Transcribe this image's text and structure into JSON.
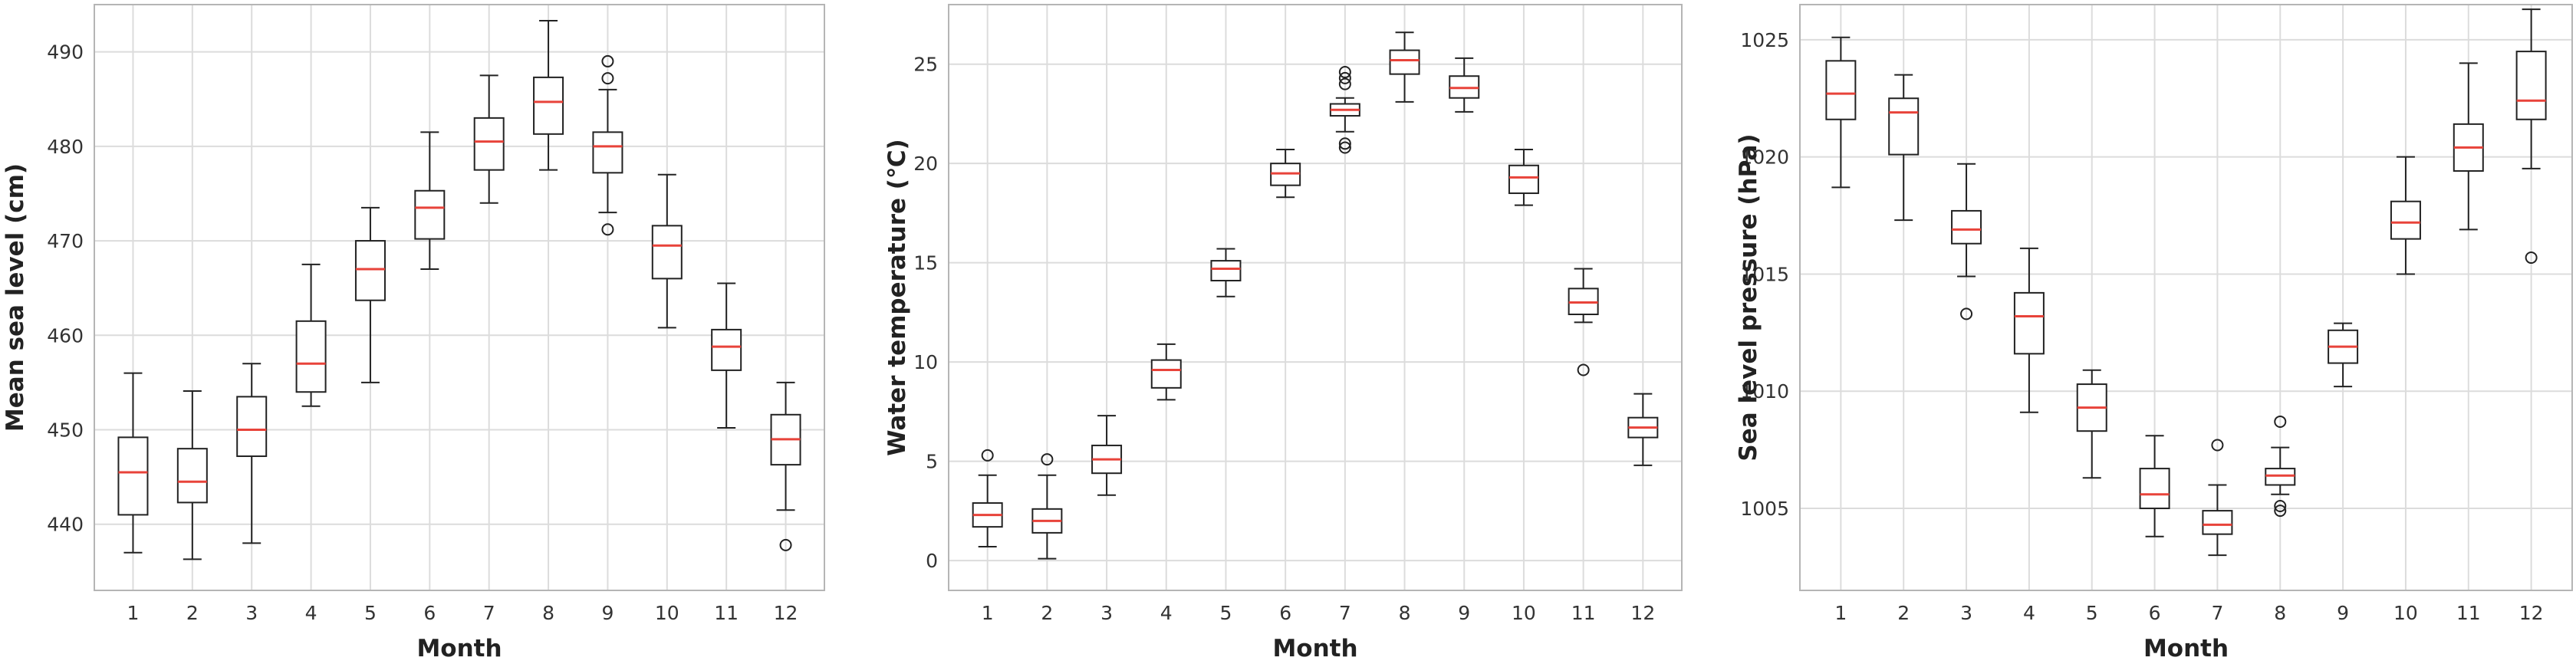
{
  "chart_data": [
    {
      "type": "box",
      "xlabel": "Month",
      "ylabel": "Mean sea level (cm)",
      "ylim": [
        433,
        495
      ],
      "yticks": [
        440,
        450,
        460,
        470,
        480,
        490
      ],
      "categories": [
        "1",
        "2",
        "3",
        "4",
        "5",
        "6",
        "7",
        "8",
        "9",
        "10",
        "11",
        "12"
      ],
      "grid": true,
      "boxes": [
        {
          "whislo": 437,
          "q1": 441,
          "med": 445.5,
          "q3": 449.2,
          "whishi": 456,
          "fliers": []
        },
        {
          "whislo": 436.3,
          "q1": 442.3,
          "med": 444.5,
          "q3": 448,
          "whishi": 454.1,
          "fliers": []
        },
        {
          "whislo": 438,
          "q1": 447.2,
          "med": 450,
          "q3": 453.5,
          "whishi": 457,
          "fliers": []
        },
        {
          "whislo": 452.5,
          "q1": 454,
          "med": 457,
          "q3": 461.5,
          "whishi": 467.5,
          "fliers": []
        },
        {
          "whislo": 455,
          "q1": 463.7,
          "med": 467,
          "q3": 470,
          "whishi": 473.5,
          "fliers": []
        },
        {
          "whislo": 467,
          "q1": 470.2,
          "med": 473.5,
          "q3": 475.3,
          "whishi": 481.5,
          "fliers": []
        },
        {
          "whislo": 474,
          "q1": 477.5,
          "med": 480.5,
          "q3": 483,
          "whishi": 487.5,
          "fliers": []
        },
        {
          "whislo": 477.5,
          "q1": 481.3,
          "med": 484.7,
          "q3": 487.3,
          "whishi": 493.3,
          "fliers": []
        },
        {
          "whislo": 473,
          "q1": 477.2,
          "med": 480,
          "q3": 481.5,
          "whishi": 486,
          "fliers": [
            471.2,
            487.2,
            489
          ]
        },
        {
          "whislo": 460.8,
          "q1": 466,
          "med": 469.5,
          "q3": 471.6,
          "whishi": 477,
          "fliers": []
        },
        {
          "whislo": 450.2,
          "q1": 456.3,
          "med": 458.8,
          "q3": 460.6,
          "whishi": 465.5,
          "fliers": []
        },
        {
          "whislo": 441.5,
          "q1": 446.3,
          "med": 449,
          "q3": 451.6,
          "whishi": 455,
          "fliers": [
            437.8
          ]
        }
      ]
    },
    {
      "type": "box",
      "xlabel": "Month",
      "ylabel": "Water temperature (℃)",
      "ylim": [
        -1.5,
        28
      ],
      "yticks": [
        0,
        5,
        10,
        15,
        20,
        25
      ],
      "categories": [
        "1",
        "2",
        "3",
        "4",
        "5",
        "6",
        "7",
        "8",
        "9",
        "10",
        "11",
        "12"
      ],
      "grid": true,
      "boxes": [
        {
          "whislo": 0.7,
          "q1": 1.7,
          "med": 2.3,
          "q3": 2.9,
          "whishi": 4.3,
          "fliers": [
            5.3
          ]
        },
        {
          "whislo": 0.1,
          "q1": 1.4,
          "med": 2.0,
          "q3": 2.6,
          "whishi": 4.3,
          "fliers": [
            5.1
          ]
        },
        {
          "whislo": 3.3,
          "q1": 4.4,
          "med": 5.1,
          "q3": 5.8,
          "whishi": 7.3,
          "fliers": []
        },
        {
          "whislo": 8.1,
          "q1": 8.7,
          "med": 9.6,
          "q3": 10.1,
          "whishi": 10.9,
          "fliers": []
        },
        {
          "whislo": 13.3,
          "q1": 14.1,
          "med": 14.7,
          "q3": 15.1,
          "whishi": 15.7,
          "fliers": []
        },
        {
          "whislo": 18.3,
          "q1": 18.9,
          "med": 19.5,
          "q3": 20.0,
          "whishi": 20.7,
          "fliers": []
        },
        {
          "whislo": 21.6,
          "q1": 22.4,
          "med": 22.7,
          "q3": 23.0,
          "whishi": 23.3,
          "fliers": [
            20.8,
            21.0,
            24.0,
            24.3,
            24.6
          ]
        },
        {
          "whislo": 23.1,
          "q1": 24.5,
          "med": 25.2,
          "q3": 25.7,
          "whishi": 26.6,
          "fliers": []
        },
        {
          "whislo": 22.6,
          "q1": 23.3,
          "med": 23.8,
          "q3": 24.4,
          "whishi": 25.3,
          "fliers": []
        },
        {
          "whislo": 17.9,
          "q1": 18.5,
          "med": 19.3,
          "q3": 19.9,
          "whishi": 20.7,
          "fliers": []
        },
        {
          "whislo": 12.0,
          "q1": 12.4,
          "med": 13.0,
          "q3": 13.7,
          "whishi": 14.7,
          "fliers": [
            9.6
          ]
        },
        {
          "whislo": 4.8,
          "q1": 6.2,
          "med": 6.7,
          "q3": 7.2,
          "whishi": 8.4,
          "fliers": []
        }
      ]
    },
    {
      "type": "box",
      "xlabel": "Month",
      "ylabel": "Sea level pressure (hPa)",
      "ylim": [
        1001.5,
        1026.5
      ],
      "yticks": [
        1005,
        1010,
        1015,
        1020,
        1025
      ],
      "categories": [
        "1",
        "2",
        "3",
        "4",
        "5",
        "6",
        "7",
        "8",
        "9",
        "10",
        "11",
        "12"
      ],
      "grid": true,
      "boxes": [
        {
          "whislo": 1018.7,
          "q1": 1021.6,
          "med": 1022.7,
          "q3": 1024.1,
          "whishi": 1025.1,
          "fliers": []
        },
        {
          "whislo": 1017.3,
          "q1": 1020.1,
          "med": 1021.9,
          "q3": 1022.5,
          "whishi": 1023.5,
          "fliers": []
        },
        {
          "whislo": 1014.9,
          "q1": 1016.3,
          "med": 1016.9,
          "q3": 1017.7,
          "whishi": 1019.7,
          "fliers": [
            1013.3
          ]
        },
        {
          "whislo": 1009.1,
          "q1": 1011.6,
          "med": 1013.2,
          "q3": 1014.2,
          "whishi": 1016.1,
          "fliers": []
        },
        {
          "whislo": 1006.3,
          "q1": 1008.3,
          "med": 1009.3,
          "q3": 1010.3,
          "whishi": 1010.9,
          "fliers": []
        },
        {
          "whislo": 1003.8,
          "q1": 1005.0,
          "med": 1005.6,
          "q3": 1006.7,
          "whishi": 1008.1,
          "fliers": []
        },
        {
          "whislo": 1003.0,
          "q1": 1003.9,
          "med": 1004.3,
          "q3": 1004.9,
          "whishi": 1006.0,
          "fliers": [
            1007.7
          ]
        },
        {
          "whislo": 1005.6,
          "q1": 1006.0,
          "med": 1006.4,
          "q3": 1006.7,
          "whishi": 1007.6,
          "fliers": [
            1004.9,
            1005.1,
            1008.7
          ]
        },
        {
          "whislo": 1010.2,
          "q1": 1011.2,
          "med": 1011.9,
          "q3": 1012.6,
          "whishi": 1012.9,
          "fliers": []
        },
        {
          "whislo": 1015.0,
          "q1": 1016.5,
          "med": 1017.2,
          "q3": 1018.1,
          "whishi": 1020.0,
          "fliers": []
        },
        {
          "whislo": 1016.9,
          "q1": 1019.4,
          "med": 1020.4,
          "q3": 1021.4,
          "whishi": 1024.0,
          "fliers": []
        },
        {
          "whislo": 1019.5,
          "q1": 1021.6,
          "med": 1022.4,
          "q3": 1024.5,
          "whishi": 1026.3,
          "fliers": [
            1015.7
          ]
        }
      ]
    }
  ],
  "colors": {
    "box": "#222222",
    "median": "#e8433a",
    "grid": "#dcdcdc",
    "frame": "#b5b5b5"
  }
}
